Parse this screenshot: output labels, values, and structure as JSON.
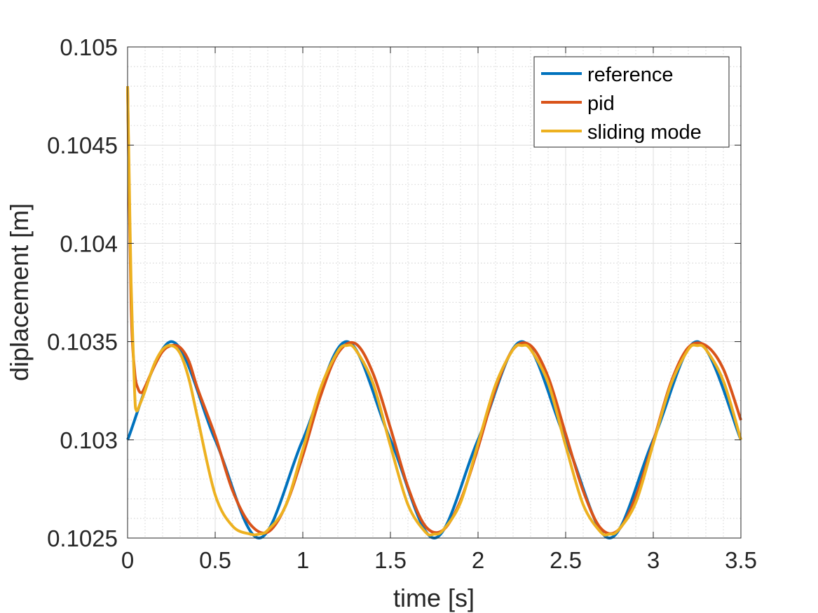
{
  "chart_data": {
    "type": "line",
    "title": "",
    "xlabel": "time [s]",
    "ylabel": "diplacement [m]",
    "xlim": [
      0,
      3.5
    ],
    "ylim": [
      0.1025,
      0.105
    ],
    "x_ticks": [
      0,
      0.5,
      1,
      1.5,
      2,
      2.5,
      3,
      3.5
    ],
    "x_tick_labels": [
      "0",
      "0.5",
      "1",
      "1.5",
      "2",
      "2.5",
      "3",
      "3.5"
    ],
    "y_ticks": [
      0.1025,
      0.103,
      0.1035,
      0.104,
      0.1045,
      0.105
    ],
    "y_tick_labels": [
      "0.1025",
      "0.103",
      "0.1035",
      "0.104",
      "0.1045",
      "0.105"
    ],
    "grid": "major and minor",
    "legend_position": "top-right",
    "series": [
      {
        "name": "reference",
        "color": "#0072bd",
        "x": [
          0,
          0.25,
          0.5,
          0.75,
          1.0,
          1.25,
          1.5,
          1.75,
          2.0,
          2.25,
          2.5,
          2.75,
          3.0,
          3.25,
          3.5
        ],
        "y": [
          0.103,
          0.1035,
          0.103,
          0.1025,
          0.103,
          0.1035,
          0.103,
          0.1025,
          0.103,
          0.1035,
          0.103,
          0.1025,
          0.103,
          0.1035,
          0.103
        ]
      },
      {
        "name": "pid",
        "color": "#d95319",
        "x": [
          0,
          0.02,
          0.04,
          0.06,
          0.08,
          0.1,
          0.15,
          0.2,
          0.25,
          0.3,
          0.35,
          0.4,
          0.5,
          0.6,
          0.7,
          0.8,
          0.9,
          1.0,
          1.1,
          1.2,
          1.3,
          1.4,
          1.5,
          1.6,
          1.7,
          1.8,
          1.9,
          2.0,
          2.1,
          2.2,
          2.3,
          2.4,
          2.5,
          2.6,
          2.7,
          2.8,
          2.9,
          3.0,
          3.1,
          3.2,
          3.3,
          3.4,
          3.5
        ],
        "y": [
          0.1048,
          0.1037,
          0.10335,
          0.10326,
          0.10324,
          0.10327,
          0.10337,
          0.10345,
          0.10348,
          0.10347,
          0.1034,
          0.10326,
          0.10302,
          0.10274,
          0.10257,
          0.10253,
          0.10266,
          0.10292,
          0.10322,
          0.10344,
          0.10349,
          0.10334,
          0.10306,
          0.10276,
          0.10256,
          0.10254,
          0.10269,
          0.10296,
          0.10326,
          0.10346,
          0.10348,
          0.10332,
          0.10303,
          0.10274,
          0.10255,
          0.10254,
          0.10271,
          0.10299,
          0.10329,
          0.10347,
          0.10348,
          0.10336,
          0.1031
        ]
      },
      {
        "name": "sliding mode",
        "color": "#edb120",
        "x": [
          0,
          0.01,
          0.02,
          0.04,
          0.05,
          0.07,
          0.1,
          0.15,
          0.2,
          0.25,
          0.3,
          0.35,
          0.4,
          0.5,
          0.6,
          0.7,
          0.75,
          0.8,
          0.9,
          1.0,
          1.1,
          1.2,
          1.25,
          1.3,
          1.4,
          1.5,
          1.6,
          1.7,
          1.75,
          1.8,
          1.9,
          2.0,
          2.1,
          2.2,
          2.25,
          2.3,
          2.4,
          2.5,
          2.6,
          2.7,
          2.75,
          2.8,
          2.9,
          3.0,
          3.1,
          3.2,
          3.25,
          3.3,
          3.4,
          3.5
        ],
        "y": [
          0.1048,
          0.1043,
          0.1038,
          0.10325,
          0.10315,
          0.10318,
          0.10325,
          0.10338,
          0.10346,
          0.10348,
          0.10344,
          0.10331,
          0.10311,
          0.10272,
          0.10256,
          0.10252,
          0.10252,
          0.10254,
          0.10266,
          0.10295,
          0.10326,
          0.10345,
          0.10348,
          0.10346,
          0.10329,
          0.10297,
          0.10267,
          0.10253,
          0.10252,
          0.10254,
          0.10268,
          0.10298,
          0.10328,
          0.10346,
          0.10348,
          0.10346,
          0.10329,
          0.10297,
          0.10267,
          0.10253,
          0.10252,
          0.10254,
          0.10268,
          0.10298,
          0.10328,
          0.10346,
          0.10348,
          0.10346,
          0.1033,
          0.103
        ]
      }
    ]
  }
}
